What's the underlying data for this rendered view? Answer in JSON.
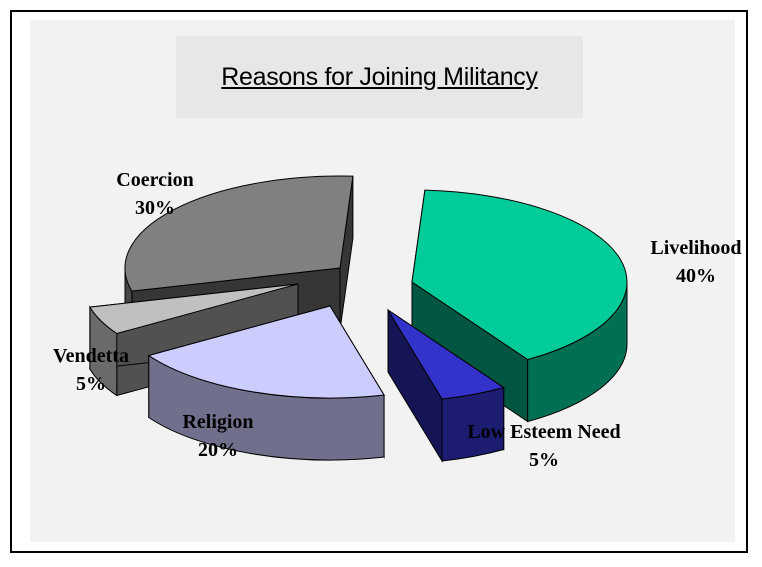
{
  "chart_data": {
    "type": "pie",
    "title": "Reasons for Joining Militancy",
    "slices": [
      {
        "label": "Livelihood",
        "value": 40,
        "value_label": "40%"
      },
      {
        "label": "Low Esteem Need",
        "value": 5,
        "value_label": "5%"
      },
      {
        "label": "Religion",
        "value": 20,
        "value_label": "20%"
      },
      {
        "label": "Vendetta",
        "value": 5,
        "value_label": "5%"
      },
      {
        "label": "Coercion",
        "value": 30,
        "value_label": "30%"
      }
    ],
    "colors": {
      "Livelihood": "#00cc99",
      "Low Esteem Need": "#3333cc",
      "Religion": "#ccccff",
      "Vendetta": "#c0c0c0",
      "Coercion": "#808080"
    },
    "style": "3d-exploded-pie"
  }
}
